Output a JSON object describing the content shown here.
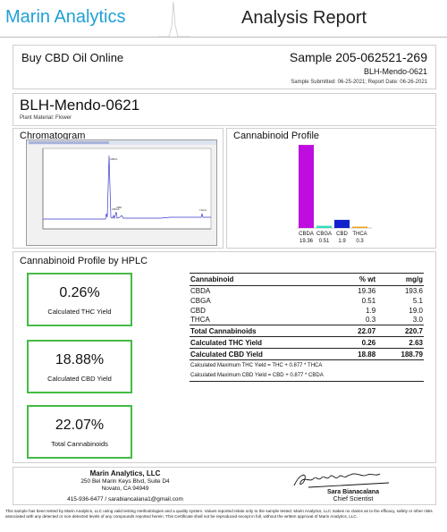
{
  "header": {
    "brand": "Marin Analytics",
    "title": "Analysis Report"
  },
  "client": {
    "name": "Buy CBD Oil Online",
    "sample_id": "Sample 205-062521-269",
    "sample_name": "BLH-Mendo-0621",
    "dates": "Sample Submitted: 06-25-2021;  Report Date: 06-26-2021"
  },
  "product": {
    "name": "BLH-Mendo-0621",
    "material": "Plant Material: Flower"
  },
  "chromatogram": {
    "title": "Chromatogram",
    "peaks": [
      "CBDA",
      "CBGA",
      "CBD",
      "THCA"
    ]
  },
  "profile": {
    "title": "Cannabinoid Profile"
  },
  "chart_data": {
    "type": "bar",
    "title": "Cannabinoid Profile",
    "categories": [
      "CBDA",
      "CBGA",
      "CBD",
      "THCA"
    ],
    "values": [
      19.36,
      0.51,
      1.9,
      0.3
    ],
    "value_labels": [
      "19.36",
      "0.51",
      "1.9",
      "0.3"
    ],
    "colors": [
      "#c00ddf",
      "#33ddbb",
      "#1122cc",
      "#f2a21a"
    ],
    "ylim": [
      0,
      20
    ]
  },
  "hplc": {
    "title": "Cannabinoid Profile by HPLC",
    "boxes": [
      {
        "value": "0.26%",
        "label": "Calculated THC Yield"
      },
      {
        "value": "18.88%",
        "label": "Calculated CBD Yield"
      },
      {
        "value": "22.07%",
        "label": "Total Cannabinoids"
      }
    ],
    "table": {
      "headers": [
        "Cannabinoid",
        "% wt",
        "mg/g"
      ],
      "rows": [
        [
          "CBDA",
          "19.36",
          "193.6"
        ],
        [
          "CBGA",
          "0.51",
          "5.1"
        ],
        [
          "CBD",
          "1.9",
          "19.0"
        ],
        [
          "THCA",
          "0.3",
          "3.0"
        ]
      ],
      "total": [
        "Total Cannabinoids",
        "22.07",
        "220.7"
      ],
      "thc_yield": [
        "Calculated THC Yield",
        "0.26",
        "2.63"
      ],
      "cbd_yield": [
        "Calculated CBD Yield",
        "18.88",
        "188.79"
      ],
      "note_thc": "Calculated Maximum THC Yield = THC + 0.877 * THCA",
      "note_cbd": "Calculated Maximum CBD Yield = CBD + 0.877 * CBDA"
    }
  },
  "footer": {
    "lab_name": "Marin Analytics, LLC",
    "address1": "250 Bel Marin Keys Blvd, Suite D4",
    "address2": "Novato, CA 94949",
    "contact": "415-936-6477 / sarabiancalana1@gmail.com",
    "signer": "Sara Bianacalana",
    "signer_title": "Chief Scientist",
    "disclaimer": "This sample has been tested by Marin Analytics, LLC using valid testing methodologies and a quality system.  Values reported relate only to the sample tested.  Marin Analytics, LLC makes no claims as to the efficacy, safety or other risks associated with any detected or non-detected levels of any compounds reported herein.  This Certificate shall not be reproduced except in full, without the written approval of Marin Analytics, LLC."
  }
}
